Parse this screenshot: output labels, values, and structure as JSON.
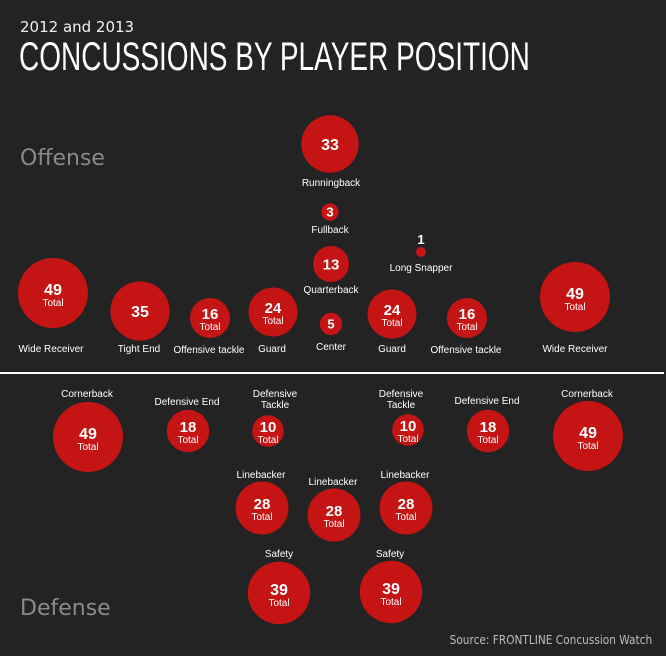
{
  "header": {
    "subtitle": "2012 and 2013",
    "title": "CONCUSSIONS BY PLAYER POSITION"
  },
  "sections": {
    "offense": "Offense",
    "defense": "Defense"
  },
  "source": "Source: FRONTLINE Concussion Watch",
  "colors": {
    "background": "#232323",
    "bubble": "#c41414",
    "text": "#ffffff",
    "section_label": "#8a8a8a"
  },
  "chart_data": {
    "type": "bubble",
    "title": "CONCUSSIONS BY PLAYER POSITION",
    "subtitle": "2012 and 2013",
    "total_label": "Total",
    "offense": [
      {
        "position": "Runningback",
        "value": 33,
        "show_total": false
      },
      {
        "position": "Fullback",
        "value": 3,
        "show_total": false
      },
      {
        "position": "Long Snapper",
        "value": 1,
        "show_total": false
      },
      {
        "position": "Quarterback",
        "value": 13,
        "show_total": false
      },
      {
        "position": "Wide Receiver",
        "value": 49,
        "show_total": true
      },
      {
        "position": "Tight End",
        "value": 35,
        "show_total": false
      },
      {
        "position": "Offensive tackle",
        "value": 16,
        "show_total": true
      },
      {
        "position": "Guard",
        "value": 24,
        "show_total": true
      },
      {
        "position": "Center",
        "value": 5,
        "show_total": false
      },
      {
        "position": "Guard",
        "value": 24,
        "show_total": true
      },
      {
        "position": "Offensive tackle",
        "value": 16,
        "show_total": true
      },
      {
        "position": "Wide Receiver",
        "value": 49,
        "show_total": true
      }
    ],
    "defense": [
      {
        "position": "Cornerback",
        "value": 49,
        "show_total": true
      },
      {
        "position": "Defensive End",
        "value": 18,
        "show_total": true
      },
      {
        "position": "Defensive Tackle",
        "value": 10,
        "show_total": true
      },
      {
        "position": "Defensive Tackle",
        "value": 10,
        "show_total": true
      },
      {
        "position": "Defensive End",
        "value": 18,
        "show_total": true
      },
      {
        "position": "Cornerback",
        "value": 49,
        "show_total": true
      },
      {
        "position": "Linebacker",
        "value": 28,
        "show_total": true
      },
      {
        "position": "Linebacker",
        "value": 28,
        "show_total": true
      },
      {
        "position": "Linebacker",
        "value": 28,
        "show_total": true
      },
      {
        "position": "Safety",
        "value": 39,
        "show_total": true
      },
      {
        "position": "Safety",
        "value": 39,
        "show_total": true
      }
    ]
  }
}
